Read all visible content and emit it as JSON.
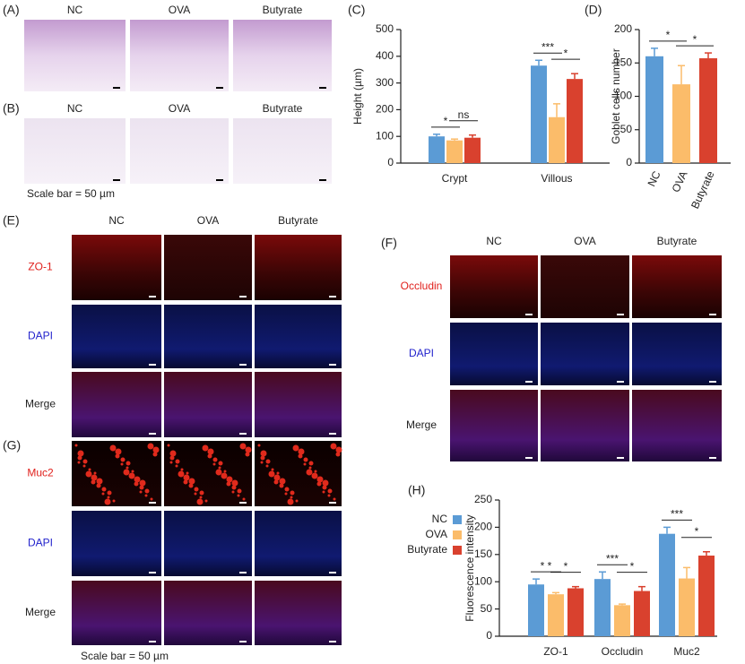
{
  "panels": {
    "A": {
      "label": "(A)",
      "columns": [
        "NC",
        "OVA",
        "Butyrate"
      ]
    },
    "B": {
      "label": "(B)",
      "columns": [
        "NC",
        "OVA",
        "Butyrate"
      ],
      "note": "Scale bar = 50 µm"
    },
    "E": {
      "label": "(E)",
      "columns": [
        "NC",
        "OVA",
        "Butyrate"
      ],
      "rows": [
        "ZO-1",
        "DAPI",
        "Merge"
      ]
    },
    "F": {
      "label": "(F)",
      "columns": [
        "NC",
        "OVA",
        "Butyrate"
      ],
      "rows": [
        "Occludin",
        "DAPI",
        "Merge"
      ]
    },
    "G": {
      "label": "(G)",
      "rows": [
        "Muc2",
        "DAPI",
        "Merge"
      ],
      "note": "Scale bar = 50 µm"
    }
  },
  "chart_data": [
    {
      "type": "bar",
      "panel_label": "(C)",
      "ylabel": "Height (µm)",
      "categories": [
        "Crypt",
        "Villous"
      ],
      "series": [
        {
          "name": "NC",
          "color": "#5b9bd5",
          "values": [
            100,
            365
          ],
          "errors": [
            8,
            20
          ]
        },
        {
          "name": "OVA",
          "color": "#fbbc6a",
          "values": [
            85,
            172
          ],
          "errors": [
            5,
            50
          ]
        },
        {
          "name": "Butyrate",
          "color": "#d9412e",
          "values": [
            95,
            315
          ],
          "errors": [
            10,
            20
          ]
        }
      ],
      "ylim": [
        0,
        500
      ],
      "yticks": [
        0,
        100,
        200,
        300,
        400,
        500
      ],
      "annotations": [
        "*",
        "ns",
        "***",
        "*"
      ]
    },
    {
      "type": "bar",
      "panel_label": "(D)",
      "ylabel": "Goblet cells number",
      "categories": [
        "NC",
        "OVA",
        "Butyrate"
      ],
      "values": [
        160,
        118,
        157
      ],
      "errors": [
        12,
        28,
        8
      ],
      "colors": [
        "#5b9bd5",
        "#fbbc6a",
        "#d9412e"
      ],
      "ylim": [
        0,
        200
      ],
      "yticks": [
        0,
        50,
        100,
        150,
        200
      ],
      "annotations": [
        "*",
        "*"
      ]
    },
    {
      "type": "bar",
      "panel_label": "(H)",
      "ylabel": "Fluorescence intensity",
      "categories": [
        "ZO-1",
        "Occludin",
        "Muc2"
      ],
      "series": [
        {
          "name": "NC",
          "color": "#5b9bd5",
          "values": [
            95,
            105,
            188
          ],
          "errors": [
            10,
            13,
            12
          ]
        },
        {
          "name": "OVA",
          "color": "#fbbc6a",
          "values": [
            77,
            57,
            106
          ],
          "errors": [
            3,
            2,
            20
          ]
        },
        {
          "name": "Butyrate",
          "color": "#d9412e",
          "values": [
            88,
            83,
            148
          ],
          "errors": [
            3,
            8,
            7
          ]
        }
      ],
      "ylim": [
        0,
        250
      ],
      "yticks": [
        0,
        50,
        100,
        150,
        200,
        250
      ],
      "legend": "left",
      "annotations": [
        "* *",
        "*",
        "***",
        "*",
        "***",
        "*"
      ]
    }
  ]
}
